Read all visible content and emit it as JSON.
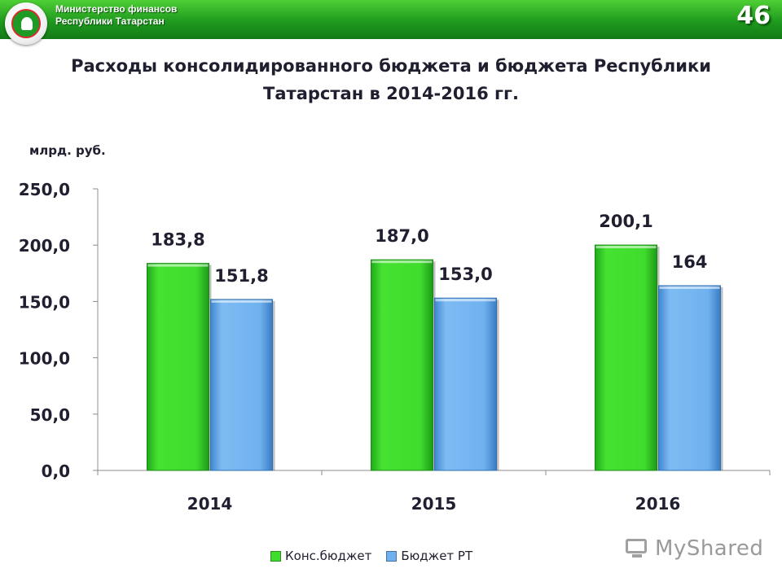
{
  "header": {
    "ministry_line1": "Министерство финансов",
    "ministry_line2": "Республики Татарстан",
    "slide_number": "46",
    "logo_icon": "tatarstan-coat-of-arms-icon"
  },
  "title_line1": "Расходы консолидированного бюджета и бюджета Республики",
  "title_line2": "Татарстан в 2014-2016 гг.",
  "unit_label": "млрд. руб.",
  "watermark": "MyShared",
  "chart_data": {
    "type": "bar",
    "title": "",
    "xlabel": "",
    "ylabel": "",
    "categories": [
      "2014",
      "2015",
      "2016"
    ],
    "ylim": [
      0,
      250
    ],
    "yticks": [
      0,
      50,
      100,
      150,
      200,
      250
    ],
    "ytick_labels": [
      "0,0",
      "50,0",
      "100,0",
      "150,0",
      "200,0",
      "250,0"
    ],
    "grid": false,
    "legend_position": "bottom",
    "series": [
      {
        "name": "Конс.бюджет",
        "color": "#3fdc2d",
        "values": [
          183.8,
          187.0,
          200.1
        ],
        "labels": [
          "183,8",
          "187,0",
          "200,1"
        ]
      },
      {
        "name": "Бюджет РТ",
        "color": "#6fb1ef",
        "values": [
          151.8,
          153.0,
          164
        ],
        "labels": [
          "151,8",
          "153,0",
          "164"
        ]
      }
    ]
  }
}
